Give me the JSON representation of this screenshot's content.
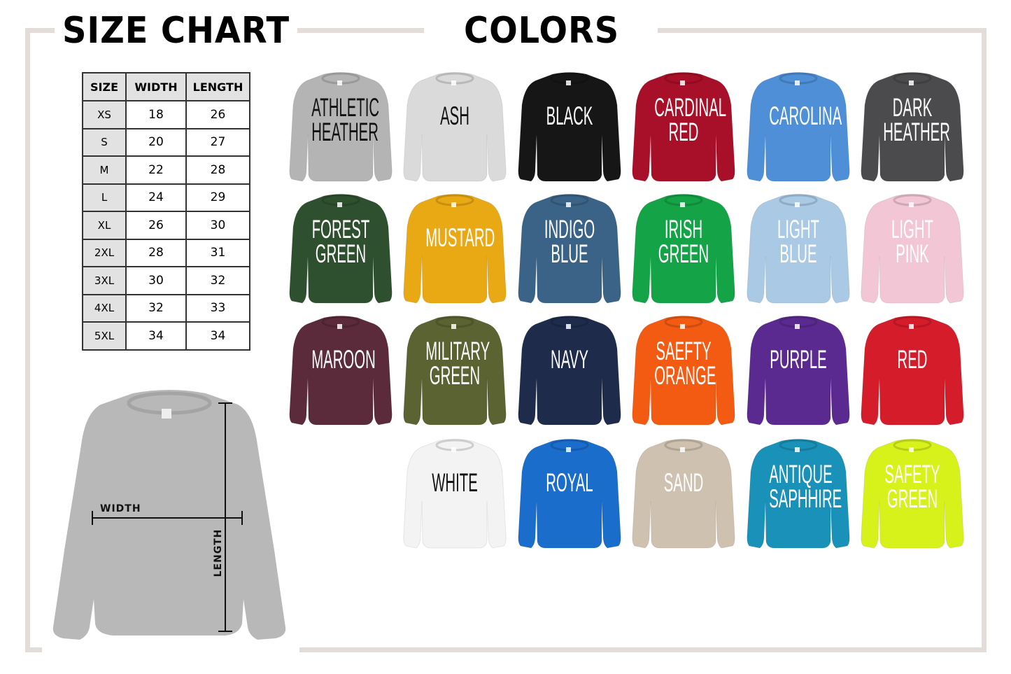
{
  "size_chart": {
    "title": "SIZE CHART",
    "headers": [
      "SIZE",
      "WIDTH",
      "LENGTH"
    ],
    "rows": [
      [
        "XS",
        "18",
        "26"
      ],
      [
        "S",
        "20",
        "27"
      ],
      [
        "M",
        "22",
        "28"
      ],
      [
        "L",
        "24",
        "29"
      ],
      [
        "XL",
        "26",
        "30"
      ],
      [
        "2XL",
        "28",
        "31"
      ],
      [
        "3XL",
        "30",
        "32"
      ],
      [
        "4XL",
        "32",
        "33"
      ],
      [
        "5XL",
        "34",
        "34"
      ]
    ],
    "diagram": {
      "width_label": "WIDTH",
      "length_label": "LENGTH",
      "shirt_color": "#b8b8b8"
    }
  },
  "colors": {
    "title": "COLORS",
    "frame_color": "#e3dcd8",
    "items": [
      {
        "name": "ATHLETIC HEATHER",
        "lines": [
          "ATHLETIC",
          "HEATHER"
        ],
        "hex": "#b4b4b4",
        "text": "#111111"
      },
      {
        "name": "ASH",
        "lines": [
          "ASH"
        ],
        "hex": "#dadada",
        "text": "#111111"
      },
      {
        "name": "BLACK",
        "lines": [
          "BLACK"
        ],
        "hex": "#161616",
        "text": "#ffffff"
      },
      {
        "name": "CARDINAL RED",
        "lines": [
          "CARDINAL",
          "RED"
        ],
        "hex": "#a80f28",
        "text": "#ffffff"
      },
      {
        "name": "CAROLINA",
        "lines": [
          "CAROLINA"
        ],
        "hex": "#4e8fd8",
        "text": "#ffffff"
      },
      {
        "name": "DARK HEATHER",
        "lines": [
          "DARK",
          "HEATHER"
        ],
        "hex": "#4b4b4d",
        "text": "#ffffff"
      },
      {
        "name": "FOREST GREEN",
        "lines": [
          "FOREST",
          "GREEN"
        ],
        "hex": "#2f502f",
        "text": "#ffffff"
      },
      {
        "name": "MUSTARD",
        "lines": [
          "MUSTARD"
        ],
        "hex": "#e9a914",
        "text": "#ffffff"
      },
      {
        "name": "INDIGO BLUE",
        "lines": [
          "INDIGO",
          "BLUE"
        ],
        "hex": "#3b6387",
        "text": "#ffffff"
      },
      {
        "name": "IRISH GREEN",
        "lines": [
          "IRISH",
          "GREEN"
        ],
        "hex": "#14a347",
        "text": "#ffffff"
      },
      {
        "name": "LIGHT BLUE",
        "lines": [
          "LIGHT",
          "BLUE"
        ],
        "hex": "#aac9e4",
        "text": "#ffffff"
      },
      {
        "name": "LIGHT PINK",
        "lines": [
          "LIGHT",
          "PINK"
        ],
        "hex": "#f3c6d6",
        "text": "#ffffff"
      },
      {
        "name": "MAROON",
        "lines": [
          "MAROON"
        ],
        "hex": "#5b2a3b",
        "text": "#ffffff"
      },
      {
        "name": "MILITARY GREEN",
        "lines": [
          "MILITARY",
          "GREEN"
        ],
        "hex": "#5a6331",
        "text": "#ffffff"
      },
      {
        "name": "NAVY",
        "lines": [
          "NAVY"
        ],
        "hex": "#1e2b4b",
        "text": "#ffffff"
      },
      {
        "name": "SAEFTY ORANGE",
        "lines": [
          "SAEFTY",
          "ORANGE"
        ],
        "hex": "#f35a12",
        "text": "#ffffff"
      },
      {
        "name": "PURPLE",
        "lines": [
          "PURPLE"
        ],
        "hex": "#5b2a91",
        "text": "#ffffff"
      },
      {
        "name": "RED",
        "lines": [
          "RED"
        ],
        "hex": "#d51c2b",
        "text": "#ffffff"
      },
      {
        "name": "WHITE",
        "lines": [
          "WHITE"
        ],
        "hex": "#f3f3f3",
        "text": "#111111"
      },
      {
        "name": "ROYAL",
        "lines": [
          "ROYAL"
        ],
        "hex": "#1b6dcc",
        "text": "#ffffff"
      },
      {
        "name": "SAND",
        "lines": [
          "SAND"
        ],
        "hex": "#cfc1b0",
        "text": "#ffffff"
      },
      {
        "name": "ANTIQUE SAPHHIRE",
        "lines": [
          "ANTIQUE",
          "SAPHHIRE"
        ],
        "hex": "#1a91b9",
        "text": "#ffffff"
      },
      {
        "name": "SAFETY GREEN",
        "lines": [
          "SAFETY",
          "GREEN"
        ],
        "hex": "#d7f21b",
        "text": "#ffffff"
      }
    ]
  }
}
